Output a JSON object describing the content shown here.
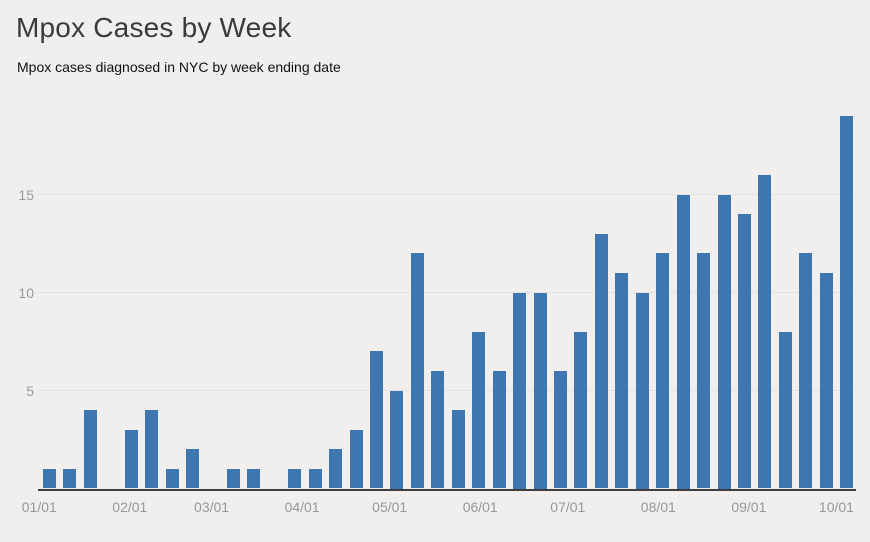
{
  "header": {
    "title": "Mpox Cases by Week",
    "subtitle": "Mpox cases diagnosed in NYC by week ending date"
  },
  "colors": {
    "background": "#f0efed",
    "bar": "#3e76af",
    "grid_line": "#e4e3e1",
    "axis_line": "#3f3f3f",
    "x_tick_label": "#979797",
    "y_tick_label": "#9b9b9b",
    "title_text": "#3a3a3a",
    "subtitle_text": "#111111"
  },
  "chart_data": {
    "type": "bar",
    "title": "Mpox Cases by Week",
    "subtitle": "Mpox cases diagnosed in NYC by week ending date",
    "x_unit": "week ending date",
    "n_weeks": 40,
    "values": [
      1,
      1,
      4,
      0,
      3,
      4,
      1,
      2,
      0,
      1,
      1,
      0,
      1,
      1,
      2,
      3,
      7,
      5,
      12,
      6,
      4,
      8,
      6,
      10,
      10,
      6,
      8,
      13,
      11,
      10,
      12,
      15,
      12,
      15,
      14,
      16,
      8,
      12,
      11,
      19
    ],
    "x_ticks": [
      {
        "label": "01/01",
        "day_offset": 0
      },
      {
        "label": "02/01",
        "day_offset": 31
      },
      {
        "label": "03/01",
        "day_offset": 59
      },
      {
        "label": "04/01",
        "day_offset": 90
      },
      {
        "label": "05/01",
        "day_offset": 120
      },
      {
        "label": "06/01",
        "day_offset": 151
      },
      {
        "label": "07/01",
        "day_offset": 181
      },
      {
        "label": "08/01",
        "day_offset": 212
      },
      {
        "label": "09/01",
        "day_offset": 243
      },
      {
        "label": "10/01",
        "day_offset": 273
      }
    ],
    "y_ticks": [
      5,
      10,
      15
    ],
    "ylim": [
      0,
      20
    ],
    "grid": "horizontal",
    "legend": "none"
  }
}
